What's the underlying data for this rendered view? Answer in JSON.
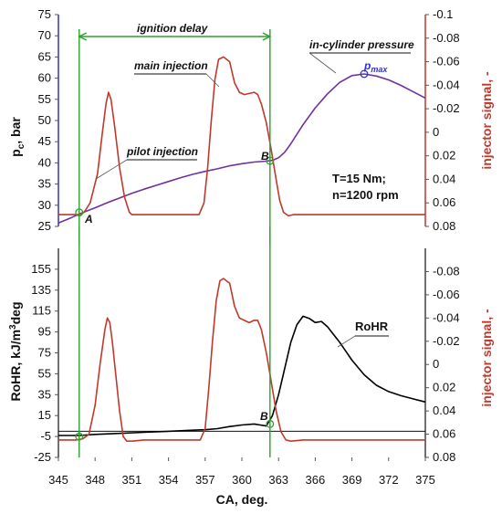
{
  "chart_data": [
    {
      "type": "line",
      "panel": "top",
      "xlim": [
        345,
        375
      ],
      "ylabel_left": "p",
      "ylabel_left_sub": "c",
      "ylabel_left_unit": ", bar",
      "ylim_left": [
        25,
        75
      ],
      "yticks_left": [
        25,
        30,
        35,
        40,
        45,
        50,
        55,
        60,
        65,
        70,
        75
      ],
      "ylabel_right": "injector signal, -",
      "ylim_right": [
        0.08,
        -0.1
      ],
      "yticks_right": [
        "-0.1",
        "-0.08",
        "-0.06",
        "-0.04",
        "-0.02",
        "0",
        "0.02",
        "0.04",
        "0.06",
        "0.08"
      ],
      "yticks_right_values": [
        -0.1,
        -0.08,
        -0.06,
        -0.04,
        -0.02,
        0,
        0.02,
        0.04,
        0.06,
        0.08
      ],
      "series": [
        {
          "name": "in-cylinder pressure",
          "color": "#7030a0",
          "axis": "left",
          "x": [
            345,
            346,
            347,
            348,
            349,
            350,
            351,
            352,
            353,
            354,
            355,
            356,
            357,
            358,
            359,
            360,
            361,
            361.5,
            362,
            362.5,
            363,
            363.5,
            364,
            365,
            366,
            367,
            368,
            369,
            370,
            371,
            372,
            373,
            374,
            375
          ],
          "y": [
            25.8,
            27,
            28.3,
            29.4,
            30.6,
            31.7,
            32.8,
            33.8,
            34.7,
            35.6,
            36.5,
            37.3,
            38,
            38.6,
            39.3,
            39.8,
            40.2,
            40.3,
            40.4,
            40.6,
            41.2,
            42.5,
            44.5,
            49,
            53,
            56.3,
            59,
            60.6,
            61,
            60.5,
            59.6,
            58.3,
            56.8,
            55.3
          ]
        },
        {
          "name": "injector signal",
          "color": "#c0392b",
          "axis": "right",
          "x": [
            345,
            346.3,
            346.7,
            347.1,
            347.6,
            348.2,
            348.6,
            348.9,
            349.1,
            349.3,
            349.6,
            350,
            350.4,
            350.8,
            351,
            352,
            354,
            355.5,
            356.5,
            356.9,
            357.2,
            357.5,
            357.8,
            358.1,
            358.5,
            359,
            359.4,
            359.8,
            360.2,
            360.6,
            361,
            361.3,
            361.6,
            362,
            362.4,
            362.8,
            363.1,
            363.4,
            363.8,
            364.2,
            365,
            370,
            375
          ],
          "y": [
            0.07,
            0.07,
            0.07,
            0.068,
            0.06,
            0.035,
            0.0,
            -0.025,
            -0.034,
            -0.028,
            -0.005,
            0.03,
            0.055,
            0.068,
            0.07,
            0.07,
            0.07,
            0.07,
            0.07,
            0.06,
            0.03,
            -0.01,
            -0.045,
            -0.062,
            -0.064,
            -0.06,
            -0.042,
            -0.034,
            -0.032,
            -0.033,
            -0.034,
            -0.032,
            -0.024,
            -0.008,
            0.015,
            0.04,
            0.058,
            0.068,
            0.071,
            0.07,
            0.07,
            0.07,
            0.07
          ]
        }
      ],
      "annotations": {
        "ignition_delay": "ignition delay",
        "main_injection": "main injection",
        "in_cylinder_pressure": "in-cylinder pressure",
        "pilot_injection": "pilot injection",
        "pmax_base": "p",
        "pmax_sub": "max",
        "point_a": "A",
        "point_b": "B",
        "condition_t": "T=15 Nm;",
        "condition_n": "n=1200 rpm"
      },
      "markers": {
        "A": {
          "x": 346.7,
          "y": 28.3
        },
        "B": {
          "x": 362.3,
          "y": 40.5
        },
        "pmax": {
          "x": 370,
          "y": 61
        }
      },
      "vlines_x": [
        346.7,
        362.3
      ]
    },
    {
      "type": "line",
      "panel": "bottom",
      "xlabel": "CA, deg.",
      "xlim": [
        345,
        375
      ],
      "xticks": [
        345,
        348,
        351,
        354,
        357,
        360,
        363,
        366,
        369,
        372,
        375
      ],
      "ylabel_left": "RoHR, kJ/m",
      "ylabel_left_sup": "3",
      "ylabel_left_unit": "deg",
      "ylim_left": [
        -25,
        175
      ],
      "yticks_left": [
        -25,
        -5,
        15,
        35,
        55,
        75,
        95,
        115,
        135,
        155
      ],
      "ylabel_right": "injector signal, -",
      "ylim_right": [
        0.08,
        -0.1
      ],
      "yticks_right": [
        "-0.08",
        "-0.06",
        "-0.04",
        "-0.02",
        "0",
        "0.02",
        "0.04",
        "0.06",
        "0.08"
      ],
      "yticks_right_values": [
        -0.08,
        -0.06,
        -0.04,
        -0.02,
        0,
        0.02,
        0.04,
        0.06,
        0.08
      ],
      "zero_line": 0,
      "series": [
        {
          "name": "RoHR",
          "color": "#000000",
          "axis": "left",
          "x": [
            345,
            346.7,
            348,
            350,
            352,
            354,
            356,
            357,
            358,
            359,
            360,
            361,
            361.5,
            362,
            362.5,
            363,
            363.5,
            364,
            364.5,
            365,
            365.5,
            366,
            366.5,
            367,
            368,
            369,
            370,
            371,
            372,
            373,
            374,
            375
          ],
          "y": [
            -4,
            -4,
            -3,
            -2,
            -1,
            0,
            1,
            1.5,
            2.5,
            4.5,
            6,
            7,
            6,
            5,
            15,
            35,
            60,
            85,
            102,
            110,
            108,
            104,
            105,
            100,
            85,
            68,
            54,
            44,
            38,
            34,
            31,
            28
          ]
        },
        {
          "name": "injector signal",
          "color": "#c0392b",
          "axis": "right",
          "x": [
            345,
            346.5,
            347,
            347.5,
            348,
            348.4,
            348.8,
            349,
            349.2,
            349.4,
            349.7,
            350,
            350.3,
            350.6,
            351,
            352,
            355,
            356.6,
            357,
            357.3,
            357.6,
            357.9,
            358.2,
            358.5,
            359,
            359.4,
            359.8,
            360.2,
            360.6,
            361,
            361.3,
            361.6,
            362,
            362.4,
            362.8,
            363.2,
            363.6,
            364,
            365,
            370,
            375
          ],
          "y": [
            0.065,
            0.065,
            0.064,
            0.06,
            0.035,
            0.0,
            -0.03,
            -0.04,
            -0.036,
            -0.02,
            0.01,
            0.04,
            0.062,
            0.066,
            0.066,
            0.065,
            0.065,
            0.065,
            0.055,
            0.02,
            -0.02,
            -0.055,
            -0.072,
            -0.074,
            -0.07,
            -0.05,
            -0.04,
            -0.038,
            -0.036,
            -0.038,
            -0.038,
            -0.03,
            -0.01,
            0.015,
            0.04,
            0.058,
            0.065,
            0.066,
            0.065,
            0.065,
            0.065
          ]
        }
      ],
      "annotations": {
        "rohr": "RoHR",
        "point_b": "B"
      },
      "markers": {
        "C": {
          "x": 346.7,
          "y": -5
        },
        "B": {
          "x": 362.3,
          "y": 7
        }
      },
      "vlines_x": [
        346.7,
        362.3
      ]
    }
  ],
  "colors": {
    "pressure": "#7030a0",
    "injector": "#c0392b",
    "rohr": "#000000",
    "markers": "#2ca02c",
    "right_axis_label": "#c0392b",
    "left_axis_top": "#3333cc"
  }
}
